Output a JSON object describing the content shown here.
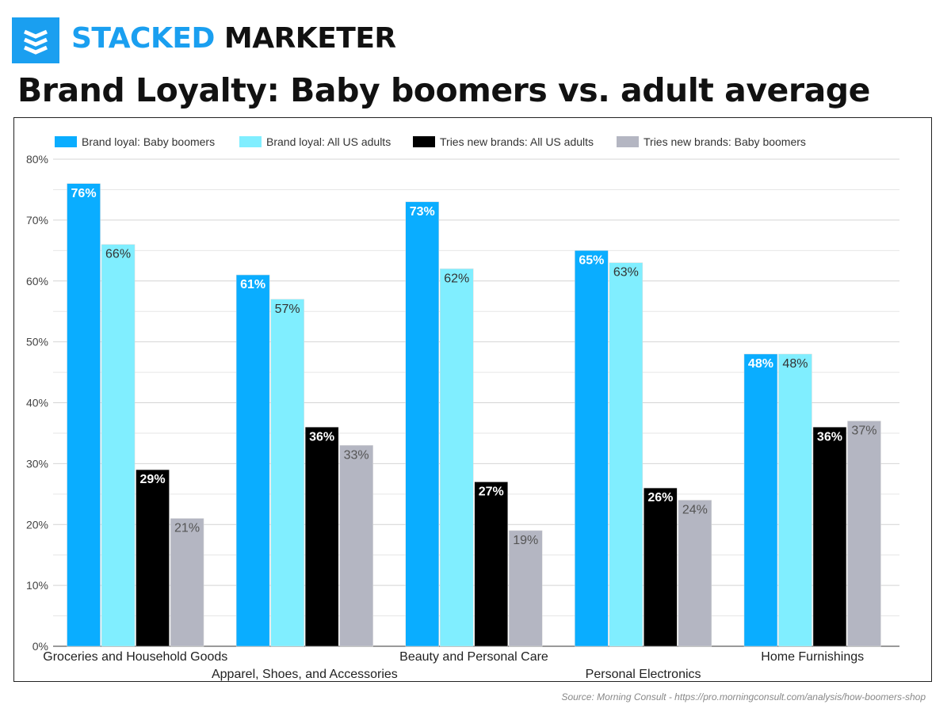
{
  "brand": {
    "name_part1": "STACKED",
    "name_part2": "MARKETER",
    "logo_icon": "stacked-layers-icon"
  },
  "title": "Brand Loyalty: Baby boomers vs. adult average",
  "source": "Source: Morning Consult - https://pro.morningconsult.com/analysis/how-boomers-shop",
  "colors": {
    "boomers_loyal": "#0aadff",
    "adults_loyal": "#80eeff",
    "adults_new": "#000000",
    "boomers_new": "#b4b6c2",
    "brand": "#1a9ff0"
  },
  "chart_data": {
    "type": "bar",
    "title": "Brand Loyalty: Baby boomers vs. adult average",
    "categories": [
      "Groceries and Household Goods",
      "Apparel, Shoes, and Accessories",
      "Beauty and Personal Care",
      "Personal Electronics",
      "Home Furnishings"
    ],
    "series": [
      {
        "name": "Brand loyal: Baby boomers",
        "color": "#0aadff",
        "label_color": "#ffffff",
        "label_bold": true,
        "values": [
          76,
          61,
          73,
          65,
          48
        ],
        "labels": [
          "76%",
          "61%",
          "73%",
          "65%",
          "48%"
        ]
      },
      {
        "name": "Brand loyal: All US adults",
        "color": "#80eeff",
        "label_color": "#333333",
        "label_bold": false,
        "values": [
          66,
          57,
          62,
          63,
          48
        ],
        "labels": [
          "66%",
          "57%",
          "62%",
          "63%",
          "48%"
        ]
      },
      {
        "name": "Tries new brands: All US adults",
        "color": "#000000",
        "label_color": "#ffffff",
        "label_bold": true,
        "values": [
          29,
          36,
          27,
          26,
          36
        ],
        "labels": [
          "29%",
          "36%",
          "27%",
          "26%",
          "36%"
        ]
      },
      {
        "name": "Tries new brands: Baby boomers",
        "color": "#b4b6c2",
        "label_color": "#555555",
        "label_bold": false,
        "values": [
          21,
          33,
          19,
          24,
          37
        ],
        "labels": [
          "21%",
          "33%",
          "19%",
          "24%",
          "37%"
        ]
      }
    ],
    "ylim": [
      0,
      80
    ],
    "yticks": [
      0,
      10,
      20,
      30,
      40,
      50,
      60,
      70,
      80
    ],
    "ytick_labels": [
      "0%",
      "10%",
      "20%",
      "30%",
      "40%",
      "50%",
      "60%",
      "70%",
      "80%"
    ],
    "minor_grid_step": 5,
    "grid": true,
    "legend_position": "top-left"
  }
}
